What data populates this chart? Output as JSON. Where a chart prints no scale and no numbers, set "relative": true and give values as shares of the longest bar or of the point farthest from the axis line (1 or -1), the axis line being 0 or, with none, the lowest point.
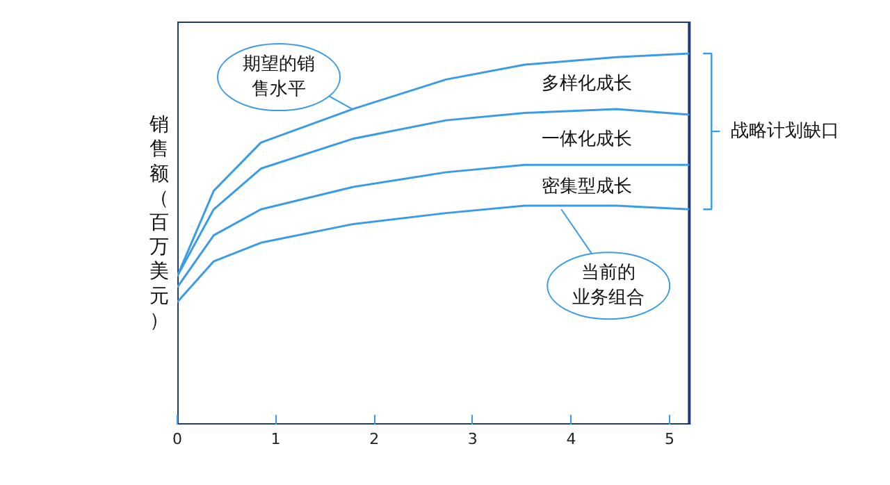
{
  "chart_data": {
    "type": "line",
    "relative": true,
    "ylabel": "销售额（百万美元）",
    "x": [
      0,
      0.37,
      0.85,
      1.78,
      2.73,
      3.53,
      4.46,
      5.2
    ],
    "xlim": [
      0,
      5.2
    ],
    "xticks": [
      0,
      1,
      2,
      3,
      4,
      5
    ],
    "series": [
      {
        "color": "#3a9ce6",
        "values": [
          0.4,
          0.63,
          0.76,
          0.85,
          0.93,
          0.97,
          0.99,
          1.0
        ]
      },
      {
        "color": "#3a9ce6",
        "values": [
          0.4,
          0.58,
          0.69,
          0.77,
          0.82,
          0.84,
          0.85,
          0.835
        ]
      },
      {
        "color": "#3a9ce6",
        "values": [
          0.37,
          0.51,
          0.58,
          0.64,
          0.68,
          0.7,
          0.7,
          0.7
        ]
      },
      {
        "color": "#3a9ce6",
        "values": [
          0.33,
          0.44,
          0.49,
          0.54,
          0.57,
          0.59,
          0.59,
          0.58
        ]
      }
    ],
    "annotations": [
      {
        "text": "期望的销售水平",
        "x": 1.78,
        "y": 0.85
      },
      "多样化成长",
      "一体化成长",
      "密集型成长",
      {
        "text": "当前的业务组合",
        "x": 3.9,
        "y": 0.58
      },
      "战略计划缺口"
    ]
  }
}
